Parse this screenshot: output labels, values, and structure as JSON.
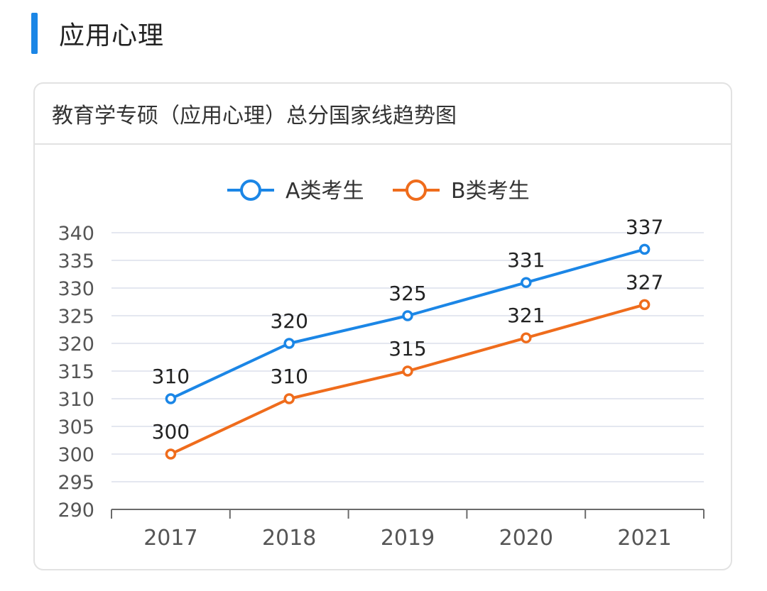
{
  "section": {
    "title": "应用心理"
  },
  "card": {
    "title": "教育学专硕（应用心理）总分国家线趋势图"
  },
  "chart_data": {
    "type": "line",
    "title": "教育学专硕（应用心理）总分国家线趋势图",
    "categories": [
      "2017",
      "2018",
      "2019",
      "2020",
      "2021"
    ],
    "series": [
      {
        "name": "A类考生",
        "color": "#1b86e6",
        "values": [
          310,
          320,
          325,
          331,
          337
        ]
      },
      {
        "name": "B类考生",
        "color": "#ef6c1c",
        "values": [
          300,
          310,
          315,
          321,
          327
        ]
      }
    ],
    "yticks": [
      290,
      295,
      300,
      305,
      310,
      315,
      320,
      325,
      330,
      335,
      340
    ],
    "ylim": [
      290,
      340
    ],
    "xlabel": "",
    "ylabel": "",
    "legend": "top-center",
    "grid": true
  }
}
